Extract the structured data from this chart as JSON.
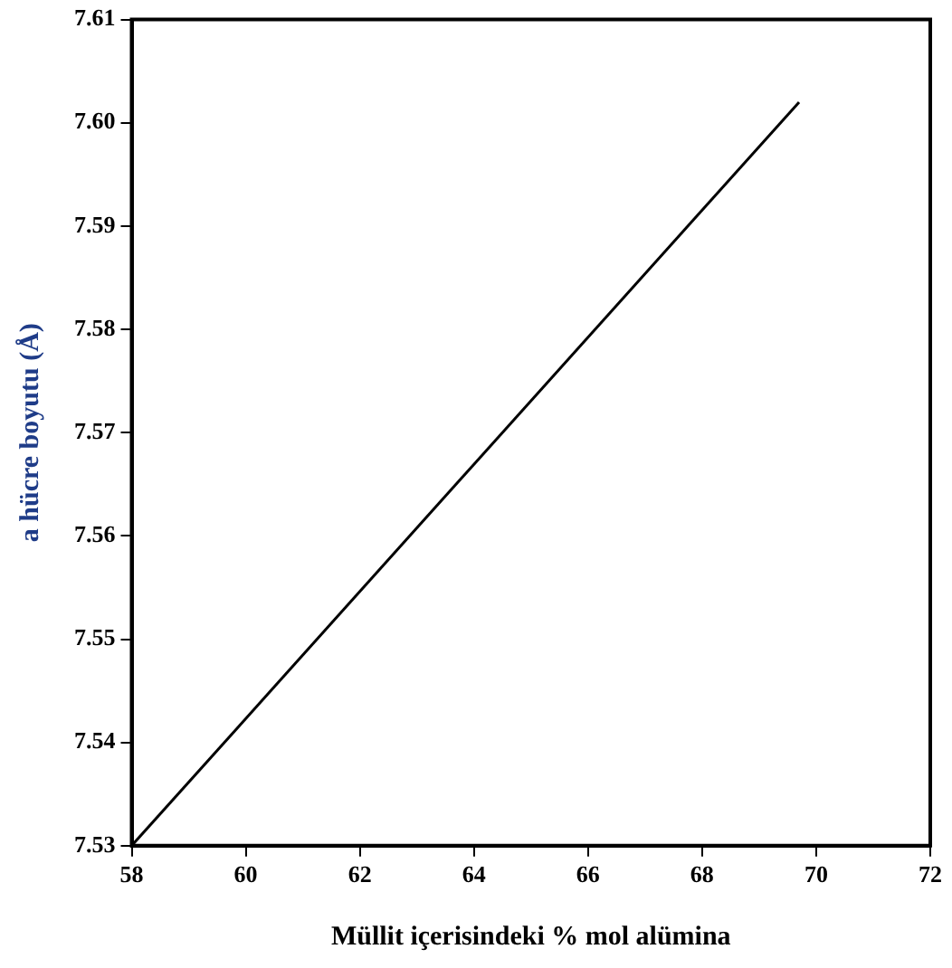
{
  "chart_data": {
    "type": "line",
    "xlabel": "Müllit içerisindeki % mol alümina",
    "ylabel": "a hücre boyutu (Å)",
    "series": [
      {
        "color": "#000000",
        "x": [
          58,
          69.7
        ],
        "values": [
          7.53,
          7.602
        ]
      }
    ],
    "xlim": [
      58,
      72
    ],
    "xticks": [
      58,
      60,
      62,
      64,
      66,
      68,
      70,
      72
    ],
    "ylim": [
      7.53,
      7.61
    ],
    "yticks": [
      7.53,
      7.54,
      7.55,
      7.56,
      7.57,
      7.58,
      7.59,
      {
        "value": 7.6,
        "label": "7.60"
      },
      7.61
    ],
    "grid": false,
    "legend": false,
    "marker": "none",
    "line_style": "solid"
  }
}
